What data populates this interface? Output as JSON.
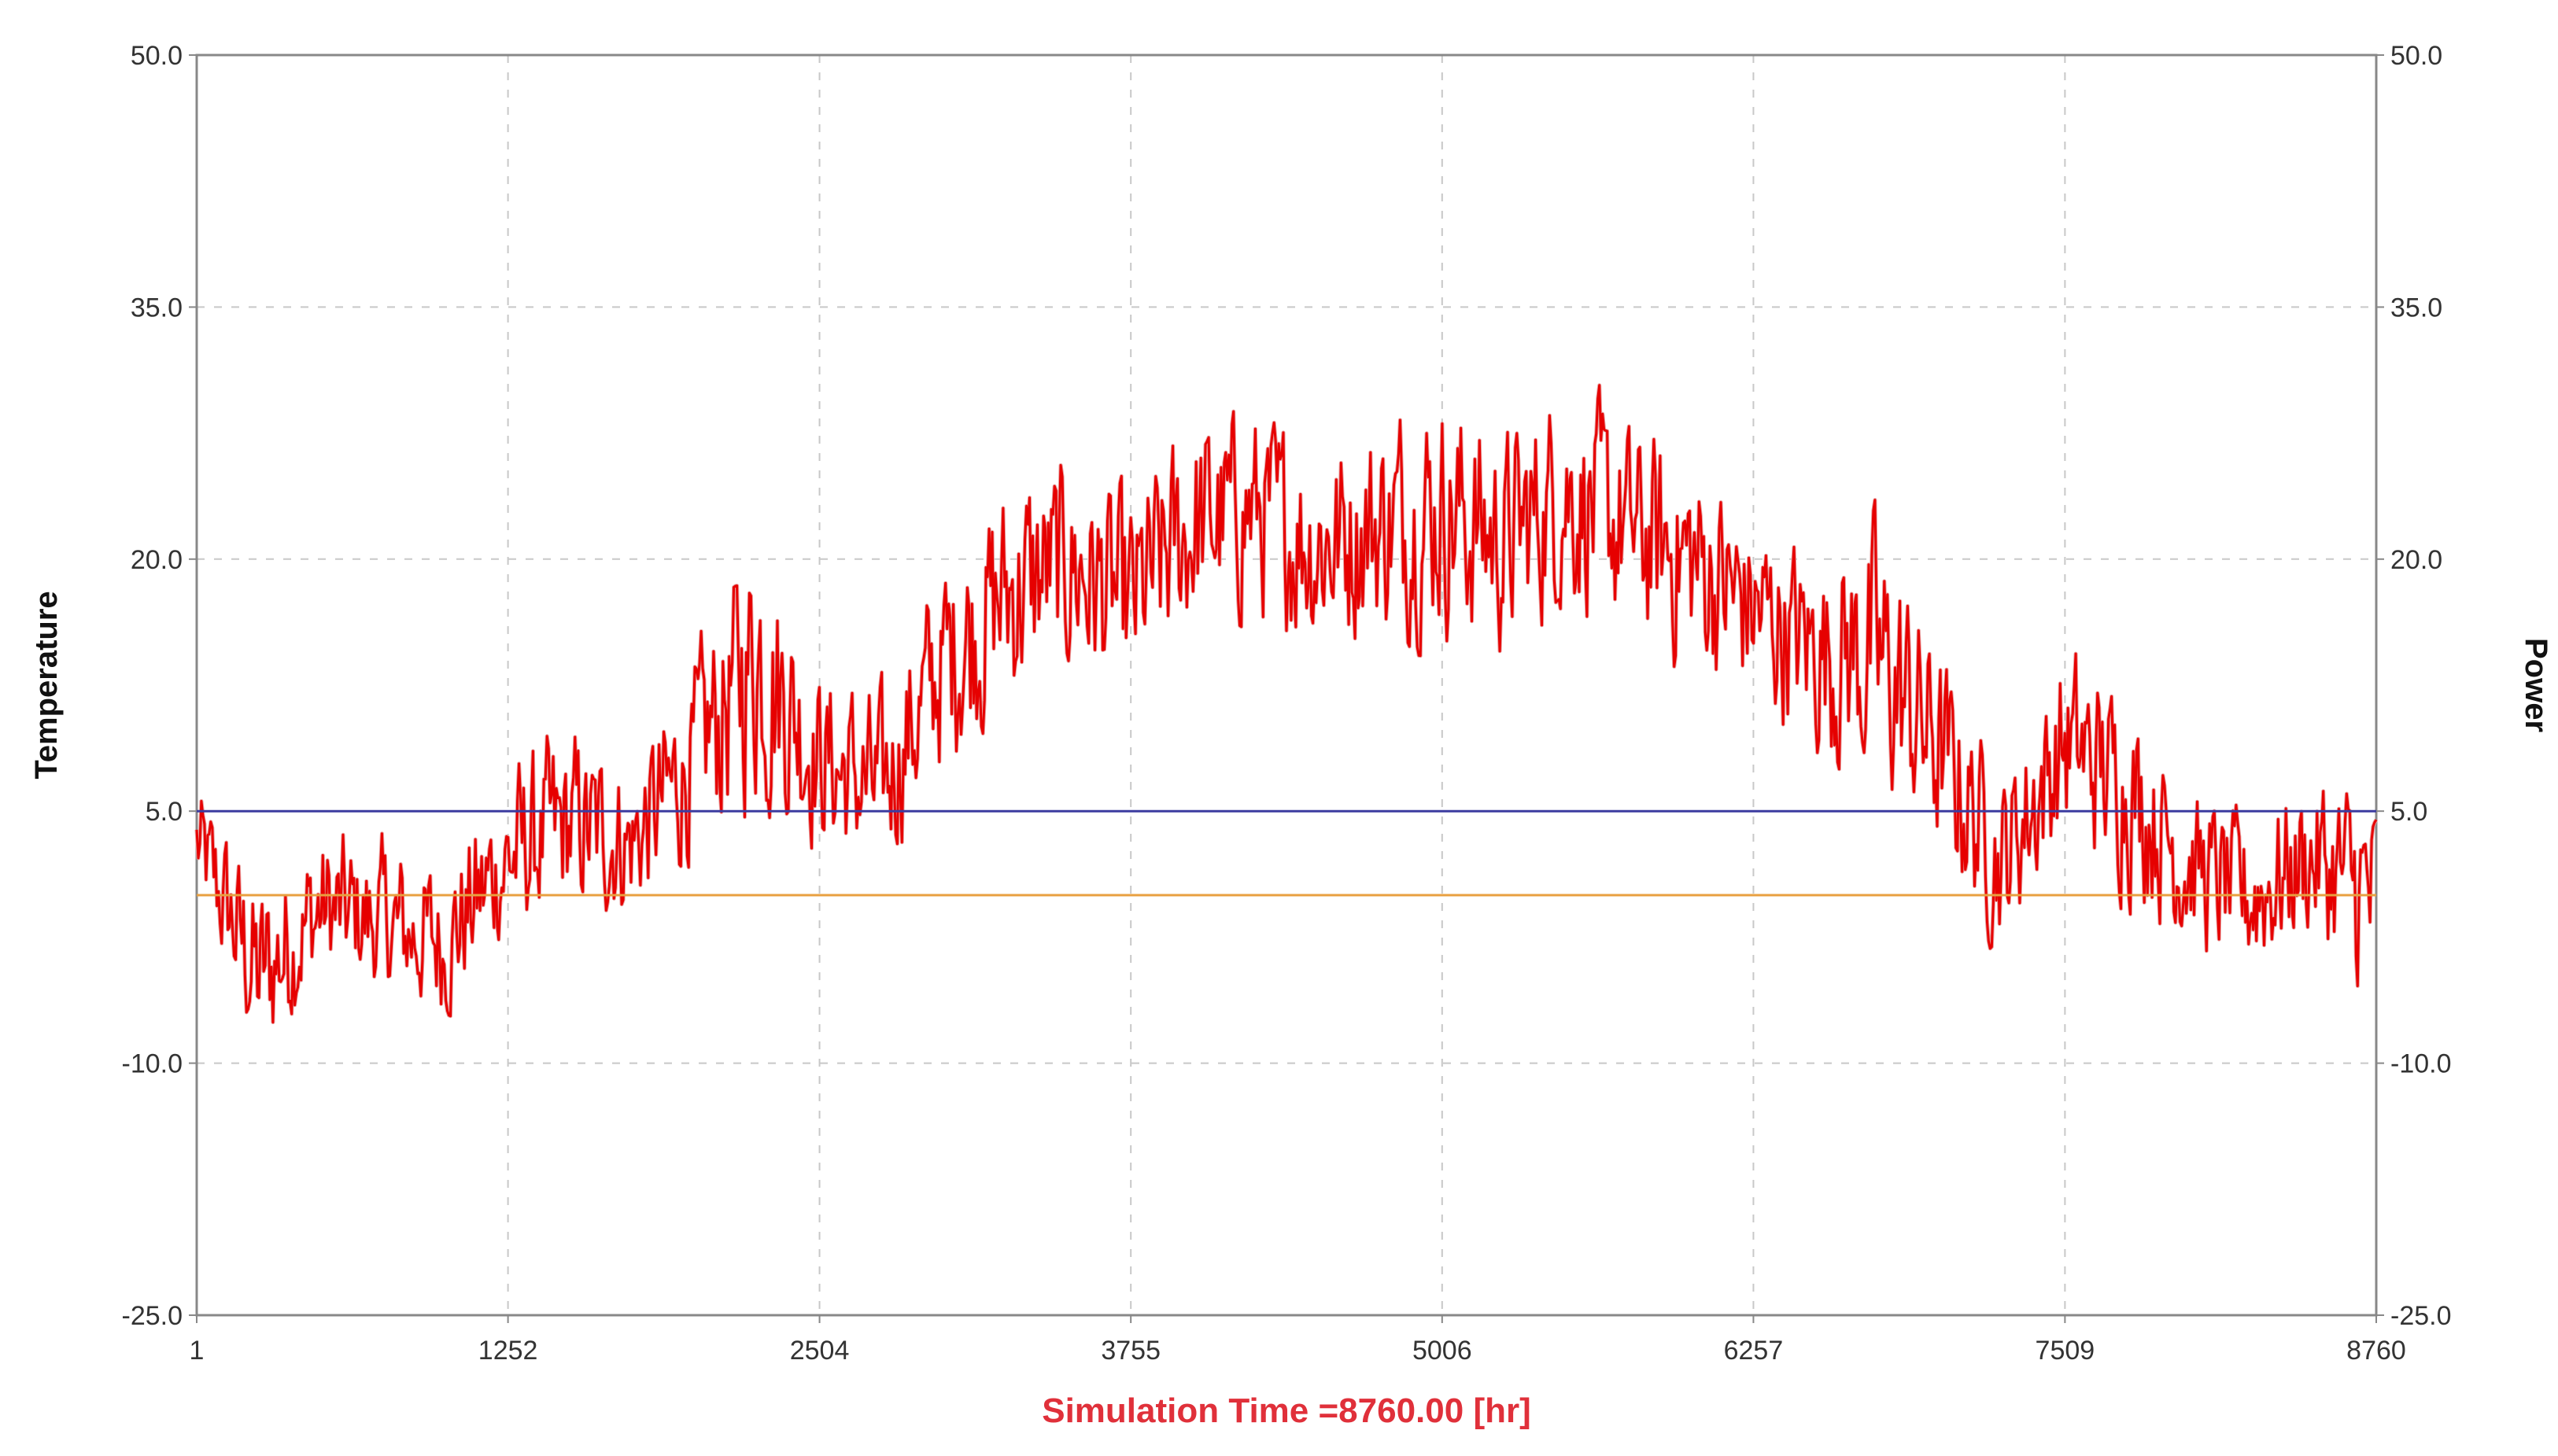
{
  "chart_data": {
    "type": "line",
    "title": "",
    "xlabel": "Simulation Time =8760.00 [hr]",
    "ylabel_left": "Temperature",
    "ylabel_right": "Power",
    "xlim": [
      1,
      8760
    ],
    "ylim_left": [
      -25.0,
      50.0
    ],
    "ylim_right": [
      -25.0,
      50.0
    ],
    "x_ticks": [
      "1",
      "1252",
      "2504",
      "3755",
      "5006",
      "6257",
      "7509",
      "8760"
    ],
    "y_ticks_left": [
      "50.0",
      "35.0",
      "20.0",
      "5.0",
      "-10.0",
      "-25.0"
    ],
    "y_ticks_right": [
      "50.0",
      "35.0",
      "20.0",
      "5.0",
      "-10.0",
      "-25.0"
    ],
    "grid": true,
    "series": [
      {
        "color": "#e60000",
        "x": [
          1,
          250,
          500,
          750,
          1000,
          1252,
          1500,
          1750,
          2000,
          2250,
          2504,
          2750,
          3000,
          3250,
          3500,
          3755,
          4000,
          4250,
          4500,
          4750,
          5006,
          5250,
          5500,
          5750,
          6000,
          6257,
          6500,
          6750,
          7000,
          7250,
          7509,
          7750,
          8000,
          8250,
          8500,
          8760
        ],
        "y": [
          3.0,
          -5.0,
          -1.0,
          -2.0,
          -3.0,
          2.0,
          4.0,
          3.0,
          8.0,
          15.0,
          8.0,
          6.0,
          14.0,
          18.0,
          20.0,
          17.0,
          22.0,
          23.0,
          21.0,
          22.0,
          23.0,
          21.0,
          24.0,
          22.0,
          20.0,
          17.0,
          15.0,
          14.0,
          9.0,
          2.0,
          9.0,
          7.0,
          2.0,
          0.0,
          2.0,
          0.0
        ],
        "range_low": [
          -1.0,
          -13.0,
          -6.0,
          -7.0,
          -9.0,
          -4.0,
          -3.0,
          -3.0,
          0.0,
          2.0,
          1.0,
          -1.0,
          5.0,
          8.0,
          10.0,
          9.0,
          13.0,
          14.0,
          12.0,
          13.0,
          13.0,
          12.0,
          15.0,
          12.0,
          11.0,
          9.0,
          6.0,
          3.0,
          -1.0,
          -5.0,
          1.0,
          -2.0,
          -5.0,
          -7.0,
          -4.0,
          -11.0
        ],
        "range_high": [
          8.0,
          3.0,
          6.0,
          5.0,
          4.0,
          10.0,
          12.0,
          10.0,
          16.0,
          25.0,
          16.0,
          14.0,
          22.0,
          27.0,
          28.0,
          26.0,
          31.0,
          31.0,
          29.0,
          31.0,
          33.0,
          30.0,
          33.0,
          30.0,
          29.0,
          25.0,
          22.0,
          26.0,
          17.0,
          9.0,
          17.0,
          14.0,
          8.0,
          6.0,
          10.0,
          8.0
        ]
      },
      {
        "color": "#3c3ca0",
        "x": [
          1,
          8760
        ],
        "y": [
          5.0,
          5.0
        ]
      },
      {
        "color": "#e8a040",
        "x": [
          1,
          8760
        ],
        "y": [
          0.0,
          0.0
        ]
      }
    ]
  }
}
